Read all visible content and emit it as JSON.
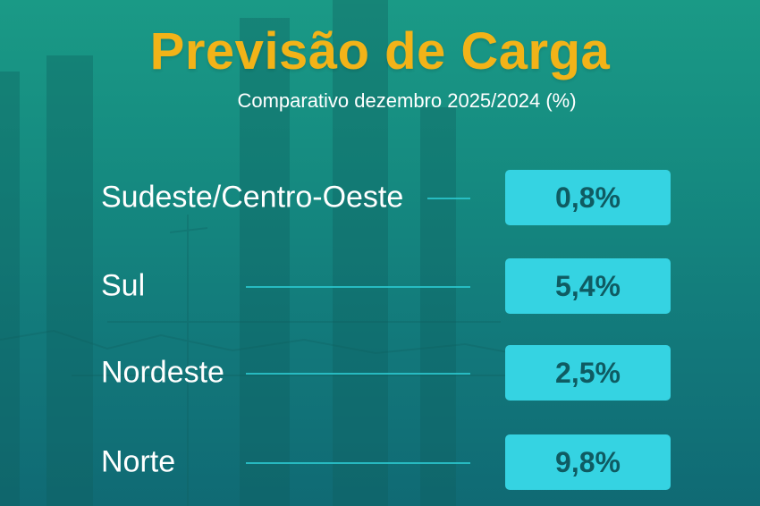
{
  "title": "Previsão de Carga",
  "subtitle": "Comparativo dezembro 2025/2024 (%)",
  "regions": [
    {
      "label": "Sudeste/Centro-Oeste",
      "value": "0,8%"
    },
    {
      "label": "Sul",
      "value": "5,4%"
    },
    {
      "label": "Nordeste",
      "value": "2,5%"
    },
    {
      "label": "Norte",
      "value": "9,8%"
    }
  ],
  "colors": {
    "title": "#f2b318",
    "value_box": "#35d3e2",
    "value_text": "#0f5b62",
    "background_top": "#1a9a86",
    "background_bottom": "#106a74"
  }
}
